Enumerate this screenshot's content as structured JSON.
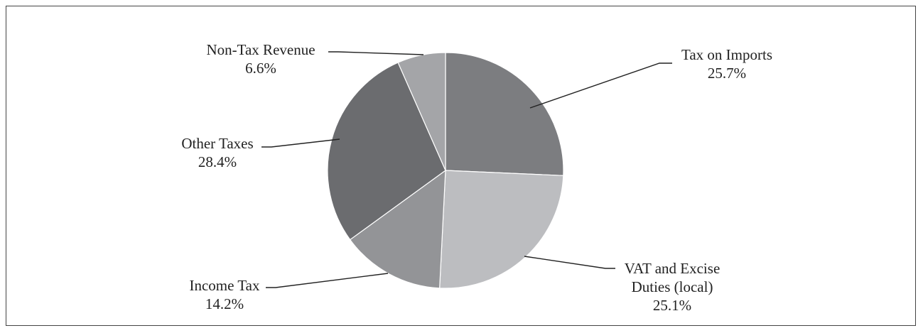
{
  "chart_data": {
    "type": "pie",
    "title": "",
    "slices": [
      {
        "name": "Tax on Imports",
        "label_lines": [
          "Tax on Imports"
        ],
        "value": 25.7,
        "pct_label": "25.7%",
        "color": "#7c7d80"
      },
      {
        "name": "VAT and Excise Duties (local)",
        "label_lines": [
          "VAT and Excise",
          "Duties (local)"
        ],
        "value": 25.1,
        "pct_label": "25.1%",
        "color": "#bcbdc0"
      },
      {
        "name": "Income Tax",
        "label_lines": [
          "Income Tax"
        ],
        "value": 14.2,
        "pct_label": "14.2%",
        "color": "#939497"
      },
      {
        "name": "Other Taxes",
        "label_lines": [
          "Other Taxes"
        ],
        "value": 28.4,
        "pct_label": "28.4%",
        "color": "#6b6c6f"
      },
      {
        "name": "Non-Tax Revenue",
        "label_lines": [
          "Non-Tax Revenue"
        ],
        "value": 6.6,
        "pct_label": "6.6%",
        "color": "#a4a5a8"
      }
    ],
    "start_angle": "12 o'clock",
    "direction": "clockwise",
    "legend": "none"
  }
}
